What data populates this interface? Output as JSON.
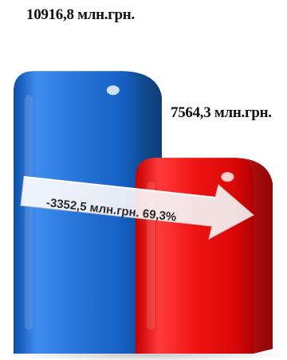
{
  "chart_data": {
    "type": "bar",
    "categories": [
      "",
      ""
    ],
    "values": [
      10916.8,
      7564.3
    ],
    "data_labels": [
      "10916,8 млн.грн.",
      "7564,3 млн.грн."
    ],
    "colors": [
      "#1a6ed3",
      "#f01010"
    ],
    "ylim": [
      0,
      12000
    ],
    "annotation": "-3352,5 млн.грн. 69,3%",
    "grid": false
  }
}
